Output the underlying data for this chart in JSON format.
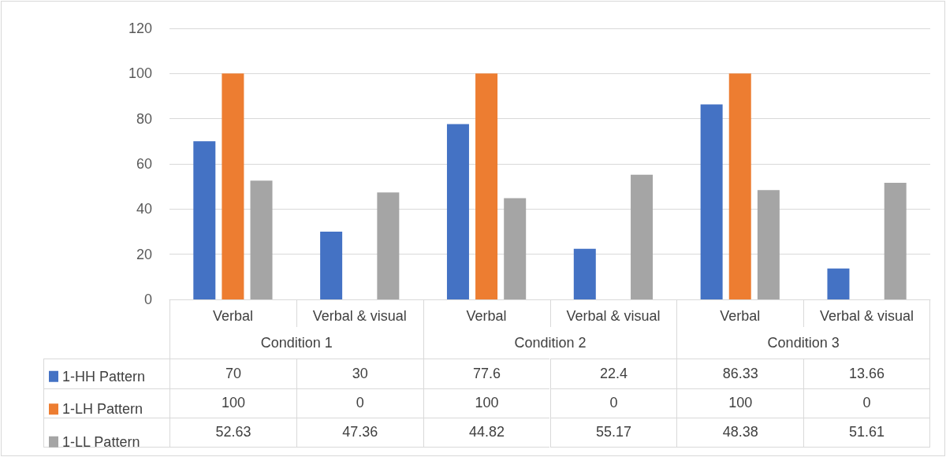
{
  "chart_data": {
    "type": "bar",
    "categories": [
      "Verbal",
      "Verbal & visual",
      "Verbal",
      "Verbal & visual",
      "Verbal",
      "Verbal & visual"
    ],
    "series": [
      {
        "name": "1-HH Pattern",
        "color": "#4472c4",
        "values": [
          70,
          30,
          77.6,
          22.4,
          86.33,
          13.66
        ]
      },
      {
        "name": "1-LH Pattern",
        "color": "#ed7d31",
        "values": [
          100,
          0,
          100,
          0,
          100,
          0
        ]
      },
      {
        "name": "1-LL Pattern",
        "color": "#a5a5a5",
        "values": [
          52.63,
          47.36,
          44.82,
          55.17,
          48.38,
          51.61
        ]
      }
    ],
    "annotations": [
      "Condition 1",
      "Condition 2",
      "Condition 3"
    ],
    "ylim": [
      0,
      120
    ],
    "yticks": [
      0,
      20,
      40,
      60,
      80,
      100,
      120
    ],
    "grid": "y",
    "legend": "bottom left",
    "data_labels": true
  }
}
